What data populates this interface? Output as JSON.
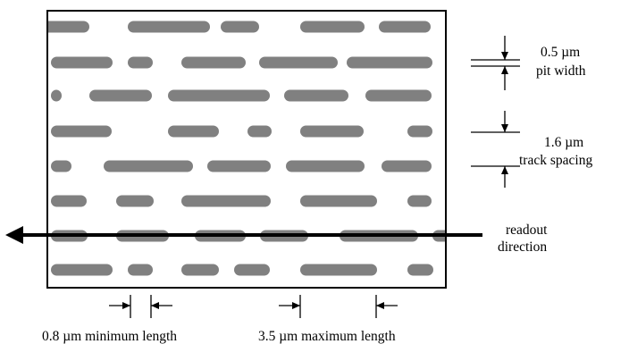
{
  "colors": {
    "pit": "#808080",
    "line": "#000000",
    "background": "#ffffff"
  },
  "labels": {
    "pit_width_value": "0.5 µm",
    "pit_width_caption": "pit width",
    "track_spacing_value": "1.6 µm",
    "track_spacing_caption": "track spacing",
    "readout_line1": "readout",
    "readout_line2": "direction",
    "min_length": "0.8 µm minimum length",
    "max_length": "3.5 µm maximum length"
  }
}
